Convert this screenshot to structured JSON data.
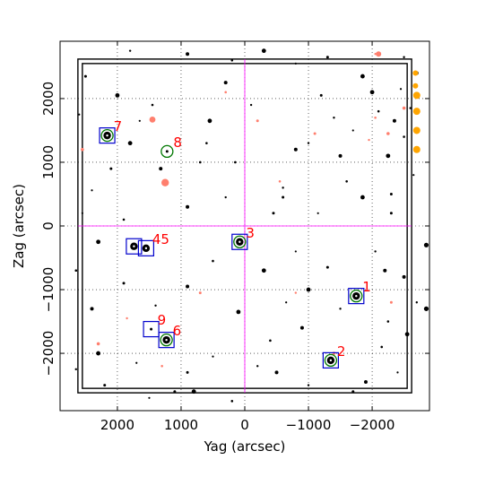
{
  "chart_data": {
    "type": "scatter",
    "title": "",
    "xlabel": "Yag (arcsec)",
    "ylabel": "Zag (arcsec)",
    "xlim": [
      2900,
      -2900
    ],
    "ylim": [
      -2900,
      2900
    ],
    "x_ticks": [
      2000,
      1000,
      0,
      -1000,
      -2000
    ],
    "y_ticks": [
      2000,
      1000,
      0,
      -1000,
      -2000
    ],
    "x_tick_labels": [
      "2000",
      "1000",
      "0",
      "−1000",
      "−2000"
    ],
    "y_tick_labels": [
      "2000",
      "1000",
      "0",
      "−1000",
      "−2000"
    ],
    "grid": true,
    "colors": {
      "field_star": "#000000",
      "faint_star": "#ff7f6e",
      "bright_edge_star": "#ffa500",
      "guide_box": "#0000cc",
      "acq_circle": "#007700",
      "id_label": "#ff0000",
      "center_line": "#ff00ff",
      "frame": "#000000"
    },
    "frame_inner_half_width": 2550,
    "frame_outer_half_width": 2620,
    "catalog_stars": [
      {
        "id": "1",
        "yag": -1750,
        "zag": -1100
      },
      {
        "id": "2",
        "yag": -1350,
        "zag": -2110
      },
      {
        "id": "3",
        "yag": 80,
        "zag": -250
      },
      {
        "id": "4",
        "yag": 1740,
        "zag": -320
      },
      {
        "id": "5",
        "yag": 1550,
        "zag": -350
      },
      {
        "id": "6",
        "yag": 1230,
        "zag": -1790
      },
      {
        "id": "7",
        "yag": 2160,
        "zag": 1420
      },
      {
        "id": "8",
        "yag": 1220,
        "zag": 1170
      },
      {
        "id": "9",
        "yag": 1470,
        "zag": -1620
      }
    ],
    "guide_boxes": [
      "1",
      "2",
      "3",
      "4",
      "5",
      "6",
      "7",
      "9"
    ],
    "acq_circles": [
      "1",
      "2",
      "3",
      "6",
      "7",
      "8"
    ],
    "field_stars": [
      [
        1650,
        1650
      ],
      [
        1250,
        680
      ],
      [
        -600,
        600
      ],
      [
        1320,
        900
      ],
      [
        700,
        1000
      ],
      [
        550,
        1650
      ],
      [
        2400,
        560
      ],
      [
        2100,
        900
      ],
      [
        -1000,
        1300
      ],
      [
        -1500,
        1100
      ],
      [
        -2100,
        1800
      ],
      [
        -1850,
        2350
      ],
      [
        -1700,
        1500
      ],
      [
        -1200,
        2050
      ],
      [
        -2600,
        1850
      ],
      [
        -2350,
        1650
      ],
      [
        -1600,
        700
      ],
      [
        -1850,
        450
      ],
      [
        -1150,
        200
      ],
      [
        -600,
        450
      ],
      [
        -100,
        1900
      ],
      [
        300,
        2250
      ],
      [
        1450,
        1900
      ],
      [
        2000,
        2050
      ],
      [
        2600,
        1750
      ],
      [
        2500,
        2350
      ],
      [
        1800,
        2750
      ],
      [
        900,
        2700
      ],
      [
        200,
        2600
      ],
      [
        -300,
        2750
      ],
      [
        -800,
        2550
      ],
      [
        -1300,
        2650
      ],
      [
        -2500,
        2650
      ],
      [
        -2700,
        2400
      ],
      [
        -2500,
        1400
      ],
      [
        -2250,
        1100
      ],
      [
        -2650,
        800
      ],
      [
        -2300,
        200
      ],
      [
        -2050,
        -400
      ],
      [
        -2500,
        -800
      ],
      [
        -2250,
        -1500
      ],
      [
        -2550,
        -1700
      ],
      [
        -2400,
        -2300
      ],
      [
        -1700,
        -2600
      ],
      [
        -1000,
        -2500
      ],
      [
        -500,
        -2300
      ],
      [
        200,
        -2750
      ],
      [
        800,
        -2600
      ],
      [
        1500,
        -2700
      ],
      [
        2200,
        -2500
      ],
      [
        2650,
        -2250
      ],
      [
        2400,
        -1300
      ],
      [
        2650,
        -700
      ],
      [
        2300,
        -250
      ],
      [
        2550,
        200
      ],
      [
        1900,
        -900
      ],
      [
        1400,
        -1250
      ],
      [
        900,
        -950
      ],
      [
        500,
        -550
      ],
      [
        -300,
        -700
      ],
      [
        -800,
        -400
      ],
      [
        -1300,
        -650
      ],
      [
        -1500,
        -1300
      ],
      [
        -900,
        -1600
      ],
      [
        -400,
        -1800
      ],
      [
        100,
        -1350
      ],
      [
        500,
        -2050
      ],
      [
        900,
        -2300
      ],
      [
        -200,
        -2200
      ],
      [
        -1900,
        -2450
      ],
      [
        -2150,
        -1900
      ],
      [
        -1000,
        -1000
      ],
      [
        -650,
        -1200
      ],
      [
        -450,
        200
      ],
      [
        300,
        450
      ],
      [
        900,
        300
      ],
      [
        1900,
        100
      ],
      [
        2300,
        -2000
      ],
      [
        1700,
        -2150
      ],
      [
        1100,
        -2600
      ],
      [
        -1400,
        1700
      ],
      [
        -800,
        1200
      ],
      [
        150,
        1000
      ],
      [
        -2000,
        2100
      ],
      [
        -2450,
        2150
      ],
      [
        -2300,
        500
      ],
      [
        -2700,
        -1200
      ],
      [
        -2200,
        -700
      ],
      [
        600,
        1300
      ],
      [
        1800,
        1300
      ]
    ],
    "faint_stars": [
      [
        1450,
        1670
      ],
      [
        2550,
        1200
      ],
      [
        -2050,
        2700
      ],
      [
        -1100,
        1450
      ],
      [
        -550,
        700
      ],
      [
        -2250,
        1450
      ],
      [
        -1950,
        1350
      ],
      [
        -2300,
        -1200
      ],
      [
        -2050,
        1700
      ],
      [
        -1400,
        -2000
      ],
      [
        -800,
        -1050
      ],
      [
        700,
        -1050
      ],
      [
        1300,
        -2200
      ],
      [
        2300,
        -1850
      ],
      [
        1850,
        -1450
      ],
      [
        -200,
        1650
      ],
      [
        300,
        2100
      ],
      [
        -2500,
        1850
      ]
    ],
    "edge_stars": [
      {
        "yag": -2700,
        "zag": 2050,
        "size": 4
      },
      {
        "yag": -2700,
        "zag": 1800,
        "size": 4
      },
      {
        "yag": -2700,
        "zag": 1500,
        "size": 4
      },
      {
        "yag": -2700,
        "zag": 1200,
        "size": 4
      },
      {
        "yag": -2680,
        "zag": 2400,
        "size": 3
      },
      {
        "yag": -2680,
        "zag": 2200,
        "size": 3
      }
    ]
  }
}
